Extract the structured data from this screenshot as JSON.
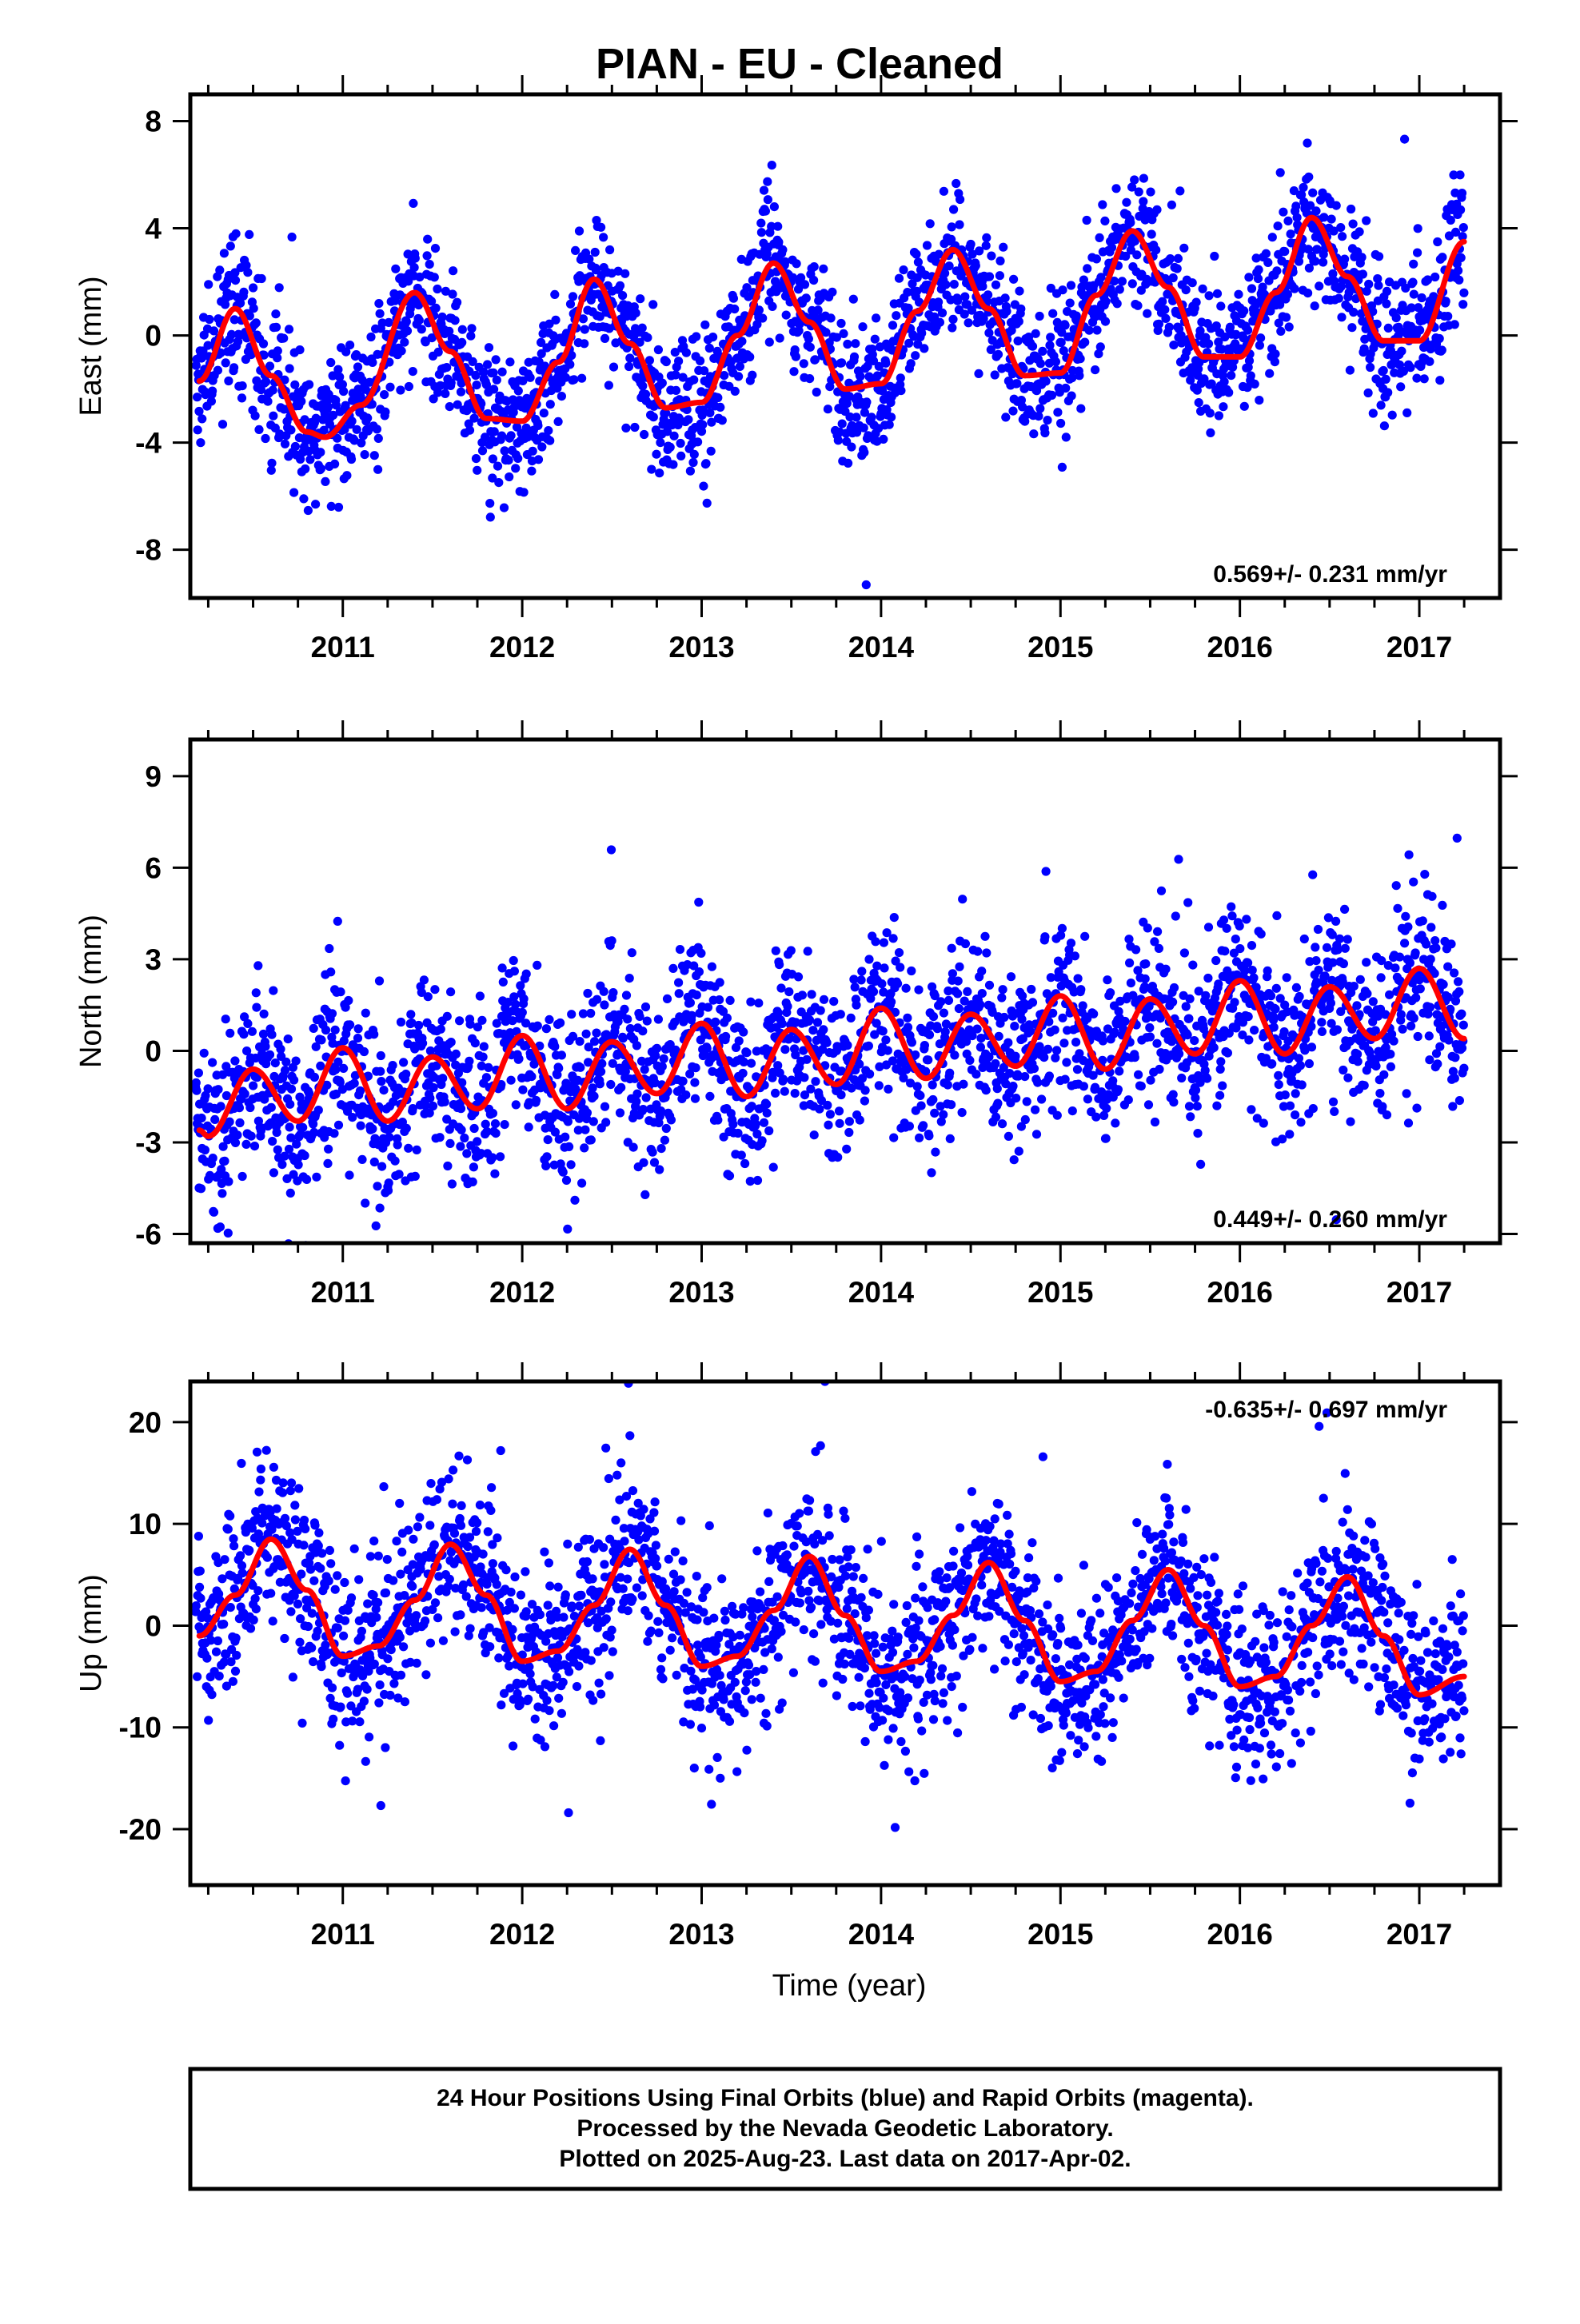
{
  "title": "PIAN  - EU - Cleaned",
  "xlabel": "Time (year)",
  "footer": {
    "line1": "24 Hour Positions Using Final Orbits (blue) and Rapid Orbits (magenta).",
    "line2": "Processed by the Nevada Geodetic Laboratory.",
    "line3": "Plotted on 2025-Aug-23. Last data on 2017-Apr-02."
  },
  "colors": {
    "points": "#0000ff",
    "model": "#ff0000",
    "frame": "#000000"
  },
  "chart_data": [
    {
      "type": "scatter",
      "ylabel": "East (mm)",
      "rate_text": "0.569+/- 0.231 mm/yr",
      "rate_position": "bottom-right",
      "xlim": [
        2010.15,
        2017.45
      ],
      "ylim": [
        -9.8,
        9.0
      ],
      "xticks": [
        2011,
        2012,
        2013,
        2014,
        2015,
        2016,
        2017
      ],
      "yticks": [
        -8,
        -4,
        0,
        4,
        8
      ],
      "grid": false,
      "model": {
        "description_values": "seasonal fit: offset + linear trend + annual sinusoid",
        "x": [
          2010.2,
          2010.4,
          2010.6,
          2010.8,
          2010.9,
          2011.1,
          2011.4,
          2011.6,
          2011.8,
          2012.0,
          2012.2,
          2012.4,
          2012.6,
          2012.8,
          2013.0,
          2013.2,
          2013.4,
          2013.6,
          2013.8,
          2014.0,
          2014.2,
          2014.4,
          2014.6,
          2014.8,
          2015.0,
          2015.2,
          2015.4,
          2015.6,
          2015.8,
          2016.0,
          2016.2,
          2016.4,
          2016.6,
          2016.8,
          2017.0,
          2017.25
        ],
        "y": [
          -1.7,
          1.0,
          -1.5,
          -3.6,
          -3.8,
          -2.6,
          1.6,
          -0.6,
          -3.1,
          -3.2,
          -1.0,
          2.1,
          -0.3,
          -2.7,
          -2.5,
          0.0,
          2.7,
          0.5,
          -2.0,
          -1.8,
          0.9,
          3.2,
          1.0,
          -1.5,
          -1.4,
          1.5,
          3.9,
          1.8,
          -0.8,
          -0.8,
          1.6,
          4.4,
          2.2,
          -0.2,
          -0.2,
          3.5
        ]
      },
      "noise_sd": 1.3
    },
    {
      "type": "scatter",
      "ylabel": "North (mm)",
      "rate_text": "0.449+/- 0.260 mm/yr",
      "rate_position": "bottom-right",
      "xlim": [
        2010.15,
        2017.45
      ],
      "ylim": [
        -6.3,
        10.2
      ],
      "xticks": [
        2011,
        2012,
        2013,
        2014,
        2015,
        2016,
        2017
      ],
      "yticks": [
        -6,
        -3,
        0,
        3,
        6,
        9
      ],
      "grid": false,
      "model": {
        "x": [
          2010.2,
          2010.25,
          2010.5,
          2010.75,
          2011.0,
          2011.25,
          2011.5,
          2011.75,
          2012.0,
          2012.25,
          2012.5,
          2012.75,
          2013.0,
          2013.25,
          2013.5,
          2013.75,
          2014.0,
          2014.25,
          2014.5,
          2014.75,
          2015.0,
          2015.25,
          2015.5,
          2015.75,
          2016.0,
          2016.25,
          2016.5,
          2016.75,
          2017.0,
          2017.25
        ],
        "y": [
          -2.6,
          -2.8,
          -0.6,
          -2.3,
          0.1,
          -2.3,
          -0.2,
          -1.9,
          0.5,
          -1.9,
          0.3,
          -1.4,
          0.9,
          -1.5,
          0.7,
          -1.1,
          1.4,
          -0.9,
          1.2,
          -0.5,
          1.8,
          -0.6,
          1.7,
          -0.1,
          2.3,
          -0.1,
          2.1,
          0.4,
          2.7,
          0.4
        ]
      },
      "noise_sd": 1.4
    },
    {
      "type": "scatter",
      "ylabel": "Up (mm)",
      "rate_text": "-0.635+/- 0.697 mm/yr",
      "rate_position": "top-right",
      "xlim": [
        2010.15,
        2017.45
      ],
      "ylim": [
        -25.5,
        24.0
      ],
      "xticks": [
        2011,
        2012,
        2013,
        2014,
        2015,
        2016,
        2017
      ],
      "yticks": [
        -20,
        -10,
        0,
        10,
        20
      ],
      "grid": false,
      "model": {
        "x": [
          2010.2,
          2010.4,
          2010.6,
          2010.8,
          2011.0,
          2011.2,
          2011.4,
          2011.6,
          2011.8,
          2012.0,
          2012.2,
          2012.4,
          2012.6,
          2012.8,
          2013.0,
          2013.2,
          2013.4,
          2013.6,
          2013.8,
          2014.0,
          2014.2,
          2014.4,
          2014.6,
          2014.8,
          2015.0,
          2015.2,
          2015.4,
          2015.6,
          2015.8,
          2016.0,
          2016.2,
          2016.4,
          2016.6,
          2016.8,
          2017.0,
          2017.25
        ],
        "y": [
          -1.0,
          3.0,
          8.5,
          3.5,
          -3.0,
          -2.0,
          2.5,
          8.0,
          3.0,
          -3.5,
          -2.5,
          2.0,
          7.5,
          2.0,
          -4.0,
          -3.0,
          1.5,
          6.8,
          1.0,
          -4.5,
          -3.5,
          1.0,
          6.2,
          0.5,
          -5.5,
          -4.5,
          0.5,
          5.5,
          0.0,
          -6.0,
          -5.0,
          0.0,
          4.8,
          -1.0,
          -6.8,
          -5.0
        ]
      },
      "noise_sd": 4.2
    }
  ]
}
